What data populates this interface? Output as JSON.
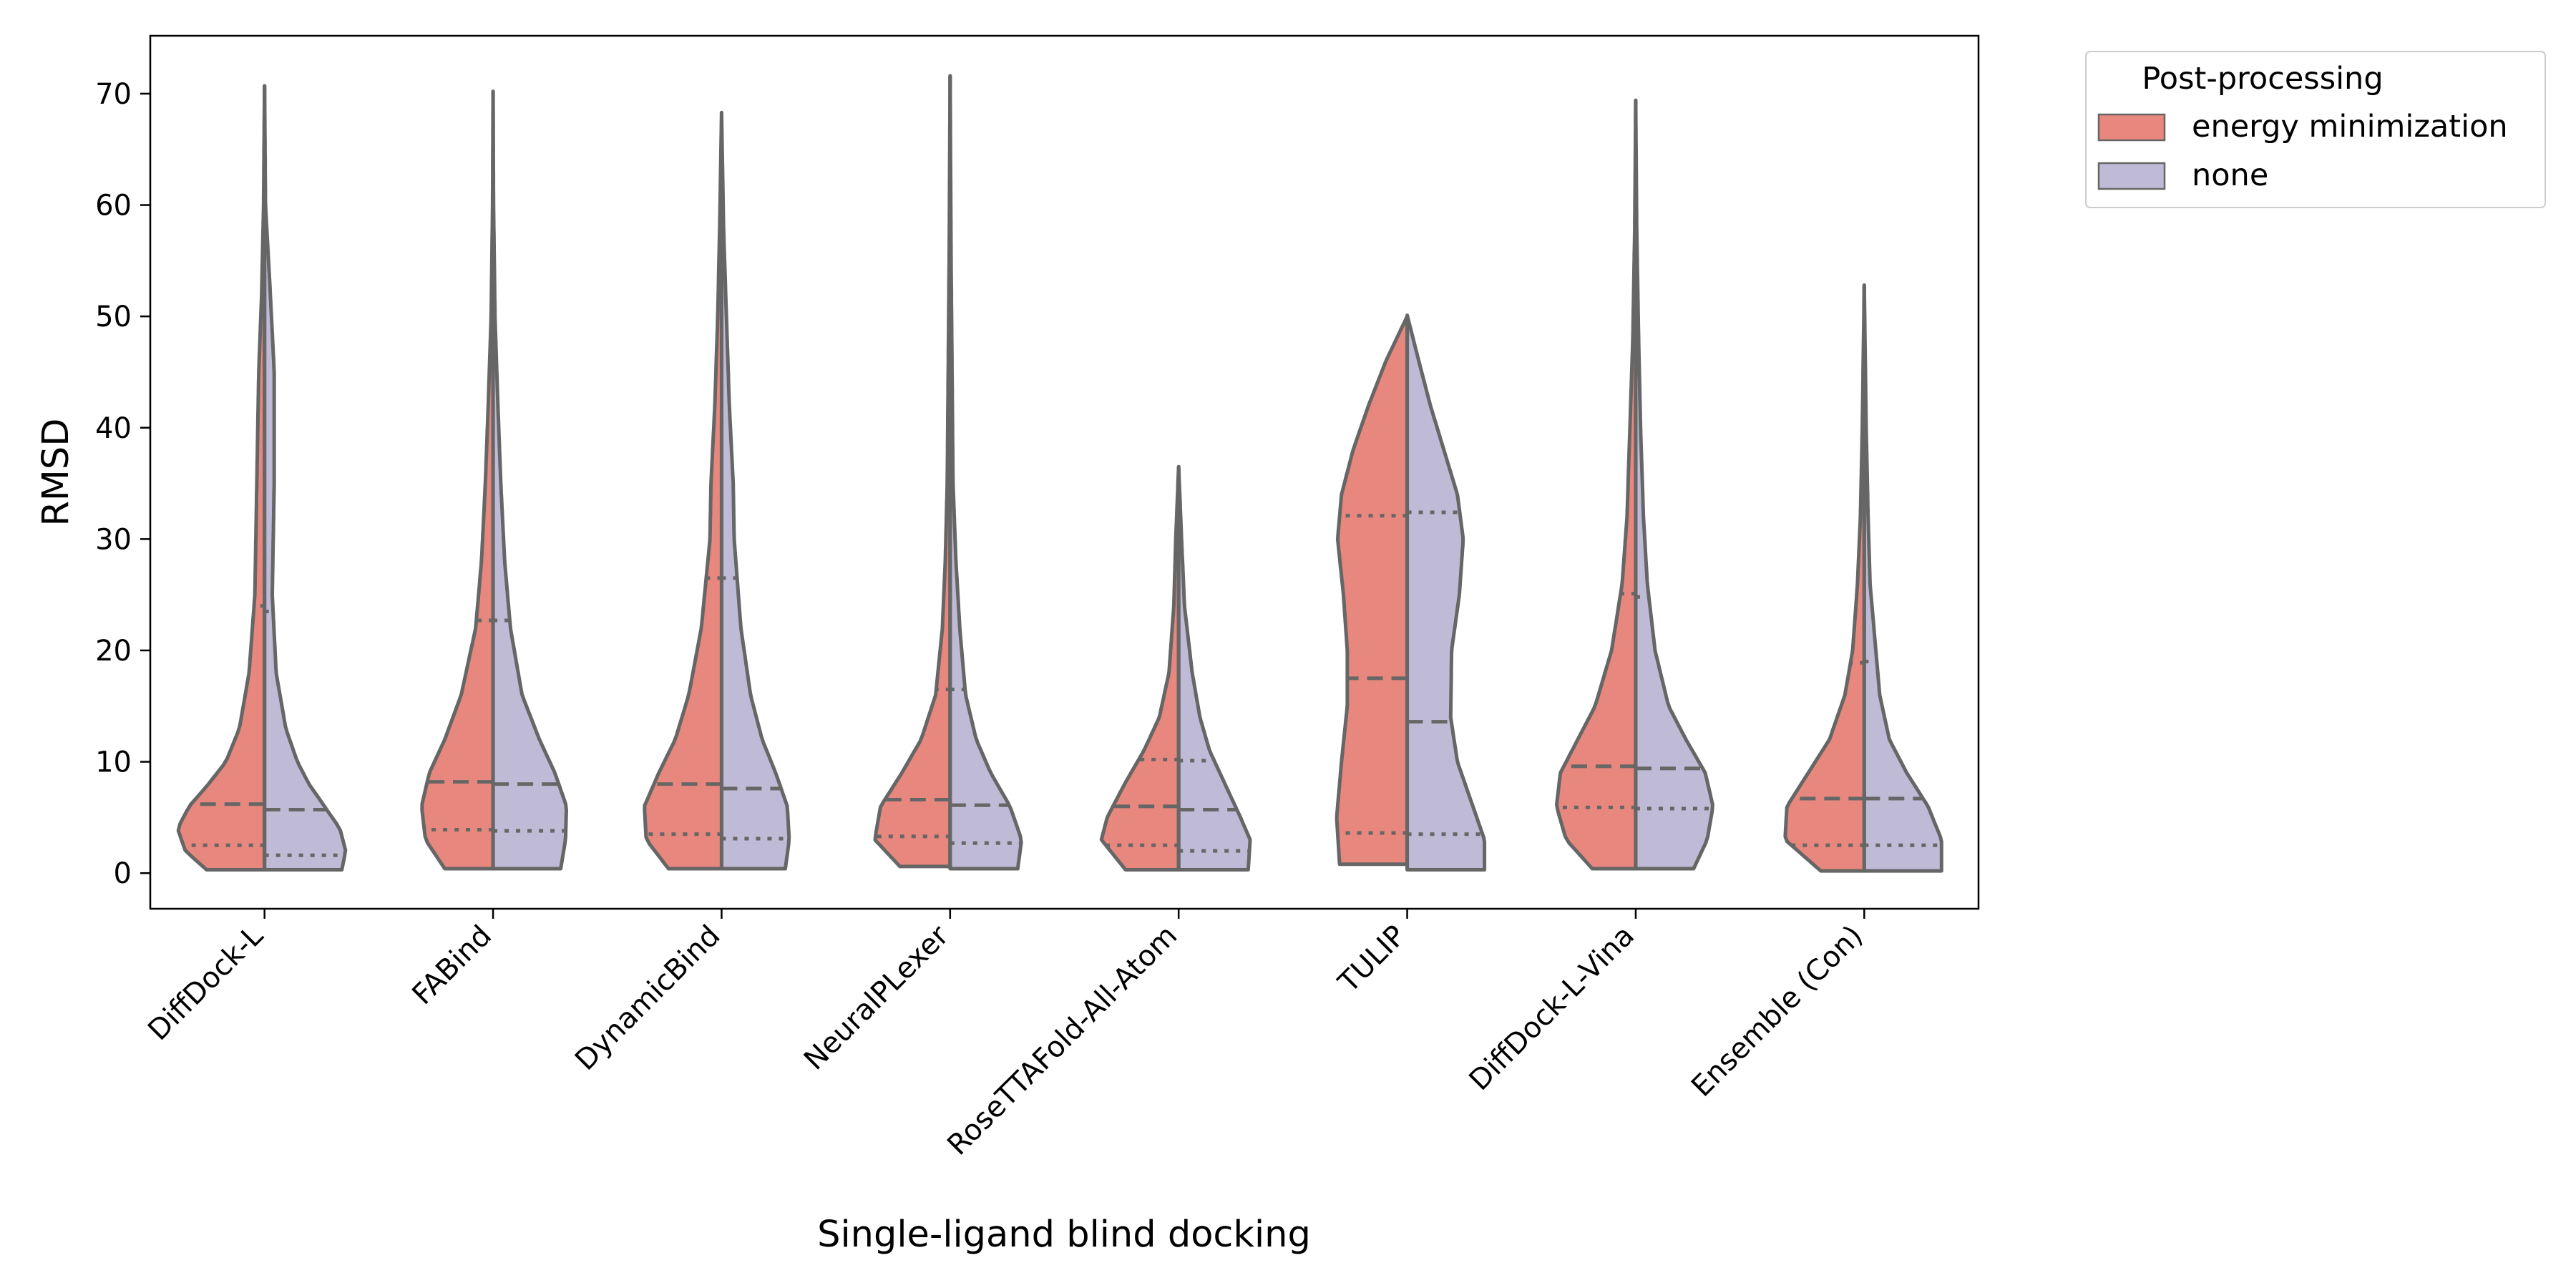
{
  "chart_data": {
    "type": "violin",
    "split": true,
    "xlabel": "Single-ligand blind docking",
    "ylabel": "RMSD",
    "ylim": [
      -3.2,
      75.2
    ],
    "yticks": [
      0,
      10,
      20,
      30,
      40,
      50,
      60,
      70
    ],
    "categories": [
      "DiffDock-L",
      "FABind",
      "DynamicBind",
      "NeuralPLexer",
      "RoseTTAFold-All-Atom",
      "TULIP",
      "DiffDock-L-Vina",
      "Ensemble (Con)"
    ],
    "legend": {
      "title": "Post-processing",
      "position": "outside-top-right"
    },
    "inner": "quartile",
    "series": [
      {
        "name": "energy minimization",
        "color": "#e8877d",
        "violins": [
          {
            "min": 0.3,
            "max": 70.7,
            "q1": 2.5,
            "median": 6.2,
            "q3": 24.0,
            "profile": [
              [
                0.3,
                0.6
              ],
              [
                2,
                0.82
              ],
              [
                4,
                0.9
              ],
              [
                6,
                0.78
              ],
              [
                8,
                0.58
              ],
              [
                10,
                0.4
              ],
              [
                13,
                0.26
              ],
              [
                18,
                0.16
              ],
              [
                25,
                0.1
              ],
              [
                35,
                0.08
              ],
              [
                45,
                0.06
              ],
              [
                52,
                0.03
              ],
              [
                60,
                0.01
              ],
              [
                70.7,
                0.0
              ]
            ]
          },
          {
            "min": 0.4,
            "max": 70.2,
            "q1": 3.9,
            "median": 8.2,
            "q3": 22.7,
            "profile": [
              [
                0.4,
                0.5
              ],
              [
                3,
                0.7
              ],
              [
                6,
                0.74
              ],
              [
                9,
                0.66
              ],
              [
                12,
                0.5
              ],
              [
                16,
                0.33
              ],
              [
                22,
                0.18
              ],
              [
                28,
                0.12
              ],
              [
                35,
                0.08
              ],
              [
                42,
                0.05
              ],
              [
                50,
                0.02
              ],
              [
                60,
                0.005
              ],
              [
                70.2,
                0.0
              ]
            ]
          },
          {
            "min": 0.4,
            "max": 68.3,
            "q1": 3.5,
            "median": 8.0,
            "q3": 26.5,
            "profile": [
              [
                0.4,
                0.55
              ],
              [
                3,
                0.78
              ],
              [
                6,
                0.8
              ],
              [
                9,
                0.65
              ],
              [
                12,
                0.48
              ],
              [
                16,
                0.34
              ],
              [
                22,
                0.21
              ],
              [
                30,
                0.12
              ],
              [
                35,
                0.11
              ],
              [
                42,
                0.07
              ],
              [
                50,
                0.04
              ],
              [
                58,
                0.02
              ],
              [
                68.3,
                0.0
              ]
            ]
          },
          {
            "min": 0.6,
            "max": 71.6,
            "q1": 3.3,
            "median": 6.6,
            "q3": 16.5,
            "profile": [
              [
                0.6,
                0.52
              ],
              [
                3,
                0.78
              ],
              [
                6,
                0.72
              ],
              [
                9,
                0.5
              ],
              [
                12,
                0.3
              ],
              [
                16,
                0.15
              ],
              [
                22,
                0.08
              ],
              [
                28,
                0.05
              ],
              [
                35,
                0.03
              ],
              [
                45,
                0.02
              ],
              [
                55,
                0.01
              ],
              [
                71.6,
                0.0
              ]
            ]
          },
          {
            "min": 0.3,
            "max": 36.5,
            "q1": 2.5,
            "median": 6.0,
            "q3": 10.2,
            "profile": [
              [
                0.3,
                0.55
              ],
              [
                3,
                0.8
              ],
              [
                5,
                0.74
              ],
              [
                8,
                0.56
              ],
              [
                11,
                0.36
              ],
              [
                14,
                0.2
              ],
              [
                18,
                0.1
              ],
              [
                24,
                0.05
              ],
              [
                30,
                0.03
              ],
              [
                36.5,
                0.0
              ]
            ]
          },
          {
            "min": 0.8,
            "max": 50.0,
            "q1": 3.6,
            "median": 17.5,
            "q3": 32.1,
            "profile": [
              [
                0.8,
                0.7
              ],
              [
                5,
                0.73
              ],
              [
                10,
                0.68
              ],
              [
                15,
                0.62
              ],
              [
                20,
                0.62
              ],
              [
                25,
                0.66
              ],
              [
                30,
                0.72
              ],
              [
                34,
                0.68
              ],
              [
                38,
                0.56
              ],
              [
                42,
                0.4
              ],
              [
                46,
                0.22
              ],
              [
                50,
                0.0
              ]
            ]
          },
          {
            "min": 0.4,
            "max": 69.4,
            "q1": 5.9,
            "median": 9.6,
            "q3": 25.1,
            "profile": [
              [
                0.4,
                0.45
              ],
              [
                3,
                0.72
              ],
              [
                6,
                0.82
              ],
              [
                9,
                0.78
              ],
              [
                12,
                0.6
              ],
              [
                15,
                0.42
              ],
              [
                20,
                0.25
              ],
              [
                26,
                0.14
              ],
              [
                32,
                0.09
              ],
              [
                40,
                0.06
              ],
              [
                48,
                0.03
              ],
              [
                58,
                0.01
              ],
              [
                69.4,
                0.0
              ]
            ]
          },
          {
            "min": 0.2,
            "max": 52.8,
            "q1": 2.5,
            "median": 6.7,
            "q3": 18.9,
            "profile": [
              [
                0.2,
                0.45
              ],
              [
                3,
                0.82
              ],
              [
                6,
                0.8
              ],
              [
                9,
                0.58
              ],
              [
                12,
                0.36
              ],
              [
                16,
                0.2
              ],
              [
                20,
                0.12
              ],
              [
                26,
                0.07
              ],
              [
                32,
                0.04
              ],
              [
                40,
                0.02
              ],
              [
                52.8,
                0.0
              ]
            ]
          }
        ]
      },
      {
        "name": "none",
        "color": "#bfbbd6",
        "violins": [
          {
            "min": 0.3,
            "max": 70.7,
            "q1": 1.6,
            "median": 5.7,
            "q3": 23.5,
            "profile": [
              [
                0.3,
                0.8
              ],
              [
                2,
                0.84
              ],
              [
                4,
                0.78
              ],
              [
                6,
                0.62
              ],
              [
                8,
                0.46
              ],
              [
                10,
                0.34
              ],
              [
                13,
                0.22
              ],
              [
                18,
                0.12
              ],
              [
                25,
                0.08
              ],
              [
                35,
                0.1
              ],
              [
                45,
                0.1
              ],
              [
                52,
                0.06
              ],
              [
                60,
                0.01
              ],
              [
                70.7,
                0.0
              ]
            ]
          },
          {
            "min": 0.4,
            "max": 70.2,
            "q1": 3.8,
            "median": 8.0,
            "q3": 22.7,
            "profile": [
              [
                0.4,
                0.7
              ],
              [
                3,
                0.75
              ],
              [
                6,
                0.76
              ],
              [
                9,
                0.64
              ],
              [
                12,
                0.48
              ],
              [
                16,
                0.3
              ],
              [
                22,
                0.18
              ],
              [
                28,
                0.12
              ],
              [
                35,
                0.08
              ],
              [
                42,
                0.05
              ],
              [
                50,
                0.02
              ],
              [
                60,
                0.005
              ],
              [
                70.2,
                0.0
              ]
            ]
          },
          {
            "min": 0.4,
            "max": 68.3,
            "q1": 3.1,
            "median": 7.6,
            "q3": 26.5,
            "profile": [
              [
                0.4,
                0.66
              ],
              [
                3,
                0.7
              ],
              [
                6,
                0.68
              ],
              [
                9,
                0.56
              ],
              [
                12,
                0.42
              ],
              [
                16,
                0.3
              ],
              [
                22,
                0.2
              ],
              [
                30,
                0.13
              ],
              [
                35,
                0.12
              ],
              [
                42,
                0.08
              ],
              [
                50,
                0.05
              ],
              [
                58,
                0.02
              ],
              [
                68.3,
                0.0
              ]
            ]
          },
          {
            "min": 0.4,
            "max": 71.6,
            "q1": 2.7,
            "median": 6.1,
            "q3": 16.5,
            "profile": [
              [
                0.4,
                0.7
              ],
              [
                3,
                0.74
              ],
              [
                6,
                0.62
              ],
              [
                9,
                0.42
              ],
              [
                12,
                0.27
              ],
              [
                16,
                0.16
              ],
              [
                22,
                0.1
              ],
              [
                28,
                0.06
              ],
              [
                35,
                0.03
              ],
              [
                45,
                0.02
              ],
              [
                55,
                0.01
              ],
              [
                71.6,
                0.0
              ]
            ]
          },
          {
            "min": 0.3,
            "max": 36.5,
            "q1": 2.0,
            "median": 5.7,
            "q3": 10.1,
            "profile": [
              [
                0.3,
                0.72
              ],
              [
                3,
                0.74
              ],
              [
                5,
                0.64
              ],
              [
                8,
                0.48
              ],
              [
                11,
                0.32
              ],
              [
                14,
                0.22
              ],
              [
                18,
                0.14
              ],
              [
                24,
                0.06
              ],
              [
                30,
                0.03
              ],
              [
                36.5,
                0.0
              ]
            ]
          },
          {
            "min": 0.3,
            "max": 50.1,
            "q1": 3.5,
            "median": 13.6,
            "q3": 32.4,
            "profile": [
              [
                0.3,
                0.8
              ],
              [
                3,
                0.8
              ],
              [
                6,
                0.68
              ],
              [
                10,
                0.52
              ],
              [
                14,
                0.45
              ],
              [
                20,
                0.46
              ],
              [
                25,
                0.54
              ],
              [
                30,
                0.58
              ],
              [
                34,
                0.52
              ],
              [
                38,
                0.38
              ],
              [
                42,
                0.24
              ],
              [
                46,
                0.12
              ],
              [
                50.1,
                0.0
              ]
            ]
          },
          {
            "min": 0.4,
            "max": 69.4,
            "q1": 5.8,
            "median": 9.4,
            "q3": 24.8,
            "profile": [
              [
                0.4,
                0.6
              ],
              [
                3,
                0.74
              ],
              [
                6,
                0.8
              ],
              [
                9,
                0.72
              ],
              [
                12,
                0.52
              ],
              [
                15,
                0.34
              ],
              [
                20,
                0.2
              ],
              [
                26,
                0.12
              ],
              [
                32,
                0.08
              ],
              [
                40,
                0.05
              ],
              [
                48,
                0.03
              ],
              [
                58,
                0.01
              ],
              [
                69.4,
                0.0
              ]
            ]
          },
          {
            "min": 0.2,
            "max": 52.8,
            "q1": 2.5,
            "median": 6.7,
            "q3": 19.0,
            "profile": [
              [
                0.2,
                0.8
              ],
              [
                3,
                0.8
              ],
              [
                6,
                0.66
              ],
              [
                9,
                0.44
              ],
              [
                12,
                0.26
              ],
              [
                16,
                0.16
              ],
              [
                20,
                0.12
              ],
              [
                26,
                0.06
              ],
              [
                32,
                0.04
              ],
              [
                40,
                0.02
              ],
              [
                52.8,
                0.0
              ]
            ]
          }
        ]
      }
    ]
  }
}
